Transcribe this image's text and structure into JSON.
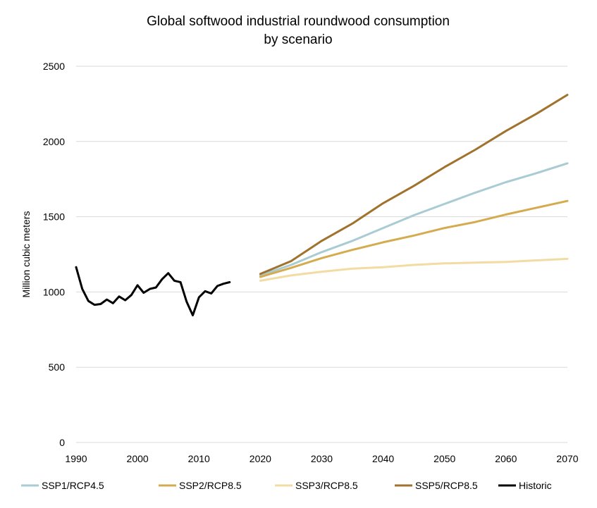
{
  "chart_data": {
    "type": "line",
    "title": [
      "Global softwood industrial roundwood consumption",
      "by scenario"
    ],
    "xlabel": "",
    "ylabel": "Million cubic meters",
    "xlim": [
      1990,
      2070
    ],
    "ylim": [
      0,
      2500
    ],
    "x_ticks": [
      1990,
      2000,
      2010,
      2020,
      2030,
      2040,
      2050,
      2060,
      2070
    ],
    "y_ticks": [
      0,
      500,
      1000,
      1500,
      2000,
      2500
    ],
    "grid": "horizontal",
    "legend_position": "bottom",
    "series": [
      {
        "name": "SSP1/RCP4.5",
        "color": "#a9cbd3",
        "x": [
          2020,
          2025,
          2030,
          2035,
          2040,
          2045,
          2050,
          2055,
          2060,
          2065,
          2070
        ],
        "y": [
          1110,
          1180,
          1265,
          1340,
          1425,
          1510,
          1585,
          1660,
          1730,
          1790,
          1855
        ]
      },
      {
        "name": "SSP2/RCP8.5",
        "color": "#d4ab4e",
        "x": [
          2020,
          2025,
          2030,
          2035,
          2040,
          2045,
          2050,
          2055,
          2060,
          2065,
          2070
        ],
        "y": [
          1100,
          1160,
          1225,
          1280,
          1330,
          1375,
          1425,
          1465,
          1515,
          1560,
          1605
        ]
      },
      {
        "name": "SSP3/RCP8.5",
        "color": "#f2dca4",
        "x": [
          2020,
          2025,
          2030,
          2035,
          2040,
          2045,
          2050,
          2055,
          2060,
          2065,
          2070
        ],
        "y": [
          1075,
          1110,
          1135,
          1155,
          1165,
          1180,
          1190,
          1195,
          1200,
          1210,
          1220
        ]
      },
      {
        "name": "SSP5/RCP8.5",
        "color": "#a0722e",
        "x": [
          2020,
          2025,
          2030,
          2035,
          2040,
          2045,
          2050,
          2055,
          2060,
          2065,
          2070
        ],
        "y": [
          1120,
          1205,
          1340,
          1455,
          1590,
          1705,
          1830,
          1945,
          2070,
          2185,
          2310
        ]
      },
      {
        "name": "Historic",
        "color": "#000000",
        "x": [
          1990,
          1991,
          1992,
          1993,
          1994,
          1995,
          1996,
          1997,
          1998,
          1999,
          2000,
          2001,
          2002,
          2003,
          2004,
          2005,
          2006,
          2007,
          2008,
          2009,
          2010,
          2011,
          2012,
          2013,
          2014,
          2015
        ],
        "y": [
          1165,
          1020,
          940,
          915,
          920,
          950,
          925,
          970,
          945,
          980,
          1045,
          995,
          1020,
          1030,
          1085,
          1125,
          1075,
          1065,
          935,
          845,
          965,
          1005,
          990,
          1040,
          1055,
          1065
        ]
      }
    ]
  }
}
